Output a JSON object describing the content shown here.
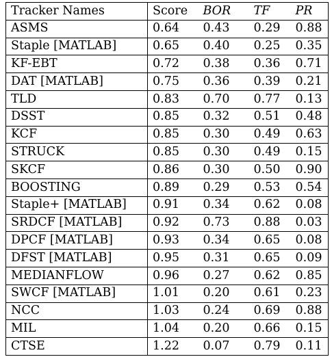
{
  "table": {
    "headers": {
      "name": "Tracker Names",
      "score": "Score",
      "bor": "BOR",
      "tf": "TF",
      "pr": "PR"
    },
    "rows": [
      {
        "name": "ASMS",
        "score": "0.64",
        "bor": "0.43",
        "tf": "0.29",
        "pr": "0.88"
      },
      {
        "name": "Staple [MATLAB]",
        "score": "0.65",
        "bor": "0.40",
        "tf": "0.25",
        "pr": "0.35"
      },
      {
        "name": "KF-EBT",
        "score": "0.72",
        "bor": "0.38",
        "tf": "0.36",
        "pr": "0.71"
      },
      {
        "name": "DAT [MATLAB]",
        "score": "0.75",
        "bor": "0.36",
        "tf": "0.39",
        "pr": "0.21"
      },
      {
        "name": "TLD",
        "score": "0.83",
        "bor": "0.70",
        "tf": "0.77",
        "pr": "0.13"
      },
      {
        "name": "DSST",
        "score": "0.85",
        "bor": "0.32",
        "tf": "0.51",
        "pr": "0.48"
      },
      {
        "name": "KCF",
        "score": "0.85",
        "bor": "0.30",
        "tf": "0.49",
        "pr": "0.63"
      },
      {
        "name": "STRUCK",
        "score": "0.85",
        "bor": "0.30",
        "tf": "0.49",
        "pr": "0.15"
      },
      {
        "name": "SKCF",
        "score": "0.86",
        "bor": "0.30",
        "tf": "0.50",
        "pr": "0.90"
      },
      {
        "name": "BOOSTING",
        "score": "0.89",
        "bor": "0.29",
        "tf": "0.53",
        "pr": "0.54"
      },
      {
        "name": "Staple+ [MATLAB]",
        "score": "0.91",
        "bor": "0.34",
        "tf": "0.62",
        "pr": "0.08"
      },
      {
        "name": "SRDCF [MATLAB]",
        "score": "0.92",
        "bor": "0.73",
        "tf": "0.88",
        "pr": "0.03"
      },
      {
        "name": "DPCF [MATLAB]",
        "score": "0.93",
        "bor": "0.34",
        "tf": "0.65",
        "pr": "0.08"
      },
      {
        "name": "DFST [MATLAB]",
        "score": "0.95",
        "bor": "0.31",
        "tf": "0.65",
        "pr": "0.09"
      },
      {
        "name": "MEDIANFLOW",
        "score": "0.96",
        "bor": "0.27",
        "tf": "0.62",
        "pr": "0.85"
      },
      {
        "name": "SWCF [MATLAB]",
        "score": "1.01",
        "bor": "0.20",
        "tf": "0.61",
        "pr": "0.23"
      },
      {
        "name": "NCC",
        "score": "1.03",
        "bor": "0.24",
        "tf": "0.69",
        "pr": "0.88"
      },
      {
        "name": "MIL",
        "score": "1.04",
        "bor": "0.20",
        "tf": "0.66",
        "pr": "0.15"
      },
      {
        "name": "CTSE",
        "score": "1.22",
        "bor": "0.07",
        "tf": "0.79",
        "pr": "0.11"
      }
    ]
  }
}
